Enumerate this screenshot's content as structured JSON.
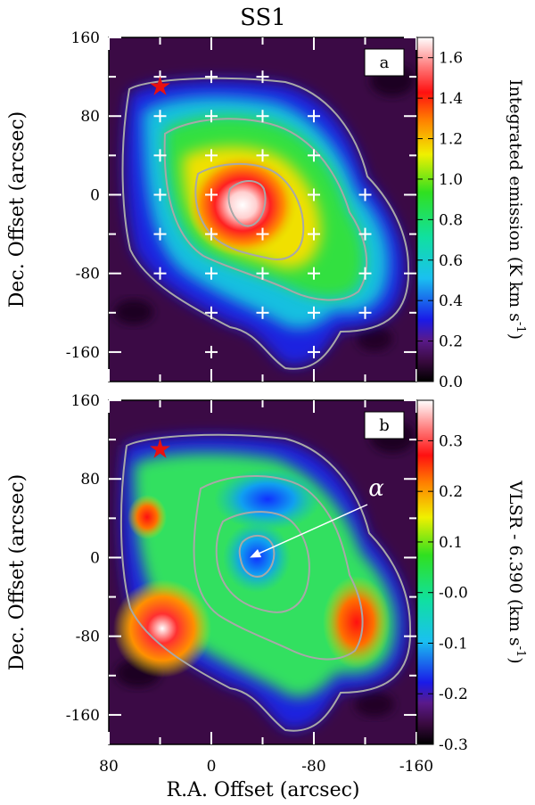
{
  "chart_data": [
    {
      "type": "heatmap",
      "panel": "a",
      "title": "SS1",
      "ylabel": "Dec. Offset (arcsec)",
      "xlim": [
        80,
        -160
      ],
      "ylim": [
        -190,
        160
      ],
      "yticks": [
        160,
        80,
        0,
        -80,
        -160
      ],
      "colorbar": {
        "label": "Integrated emission (K km s-1)",
        "range": [
          0.0,
          1.7
        ],
        "ticks": [
          "0.0",
          "0.2",
          "0.4",
          "0.6",
          "0.8",
          "1.0",
          "1.2",
          "1.4",
          "1.6"
        ]
      },
      "star_marker": {
        "x": 40,
        "y": 110
      },
      "grid_points": [
        {
          "x": 40,
          "y": 120
        },
        {
          "x": 0,
          "y": 120
        },
        {
          "x": -40,
          "y": 120
        },
        {
          "x": 40,
          "y": 80
        },
        {
          "x": 0,
          "y": 80
        },
        {
          "x": -40,
          "y": 80
        },
        {
          "x": -80,
          "y": 80
        },
        {
          "x": 40,
          "y": 40
        },
        {
          "x": 0,
          "y": 40
        },
        {
          "x": -40,
          "y": 40
        },
        {
          "x": -80,
          "y": 40
        },
        {
          "x": 40,
          "y": 0
        },
        {
          "x": 0,
          "y": 0
        },
        {
          "x": -80,
          "y": 0
        },
        {
          "x": -120,
          "y": 0
        },
        {
          "x": 40,
          "y": -40
        },
        {
          "x": 0,
          "y": -40
        },
        {
          "x": -40,
          "y": -40
        },
        {
          "x": -80,
          "y": -40
        },
        {
          "x": -120,
          "y": -40
        },
        {
          "x": 40,
          "y": -80
        },
        {
          "x": 0,
          "y": -80
        },
        {
          "x": -40,
          "y": -80
        },
        {
          "x": -80,
          "y": -80
        },
        {
          "x": -120,
          "y": -80
        },
        {
          "x": 0,
          "y": -120
        },
        {
          "x": -40,
          "y": -120
        },
        {
          "x": -80,
          "y": -120
        },
        {
          "x": -120,
          "y": -120
        },
        {
          "x": 0,
          "y": -160
        },
        {
          "x": -80,
          "y": -160
        }
      ]
    },
    {
      "type": "heatmap",
      "panel": "b",
      "ylabel": "Dec. Offset (arcsec)",
      "xlabel": "R.A. Offset (arcsec)",
      "xlim": [
        80,
        -160
      ],
      "ylim": [
        -190,
        160
      ],
      "xticks": [
        "80",
        "0",
        "-80",
        "-160"
      ],
      "yticks": [
        160,
        80,
        0,
        -80,
        -160
      ],
      "colorbar": {
        "label": "VLSR - 6.390 (km s-1)",
        "range": [
          -0.3,
          0.38
        ],
        "ticks": [
          "0.3",
          "0.2",
          "0.1",
          "-0.0",
          "-0.1",
          "-0.2",
          "-0.3"
        ]
      },
      "star_marker": {
        "x": 40,
        "y": 110
      },
      "annotation": {
        "text": "α",
        "points_to": {
          "x": -30,
          "y": 0
        }
      }
    }
  ]
}
